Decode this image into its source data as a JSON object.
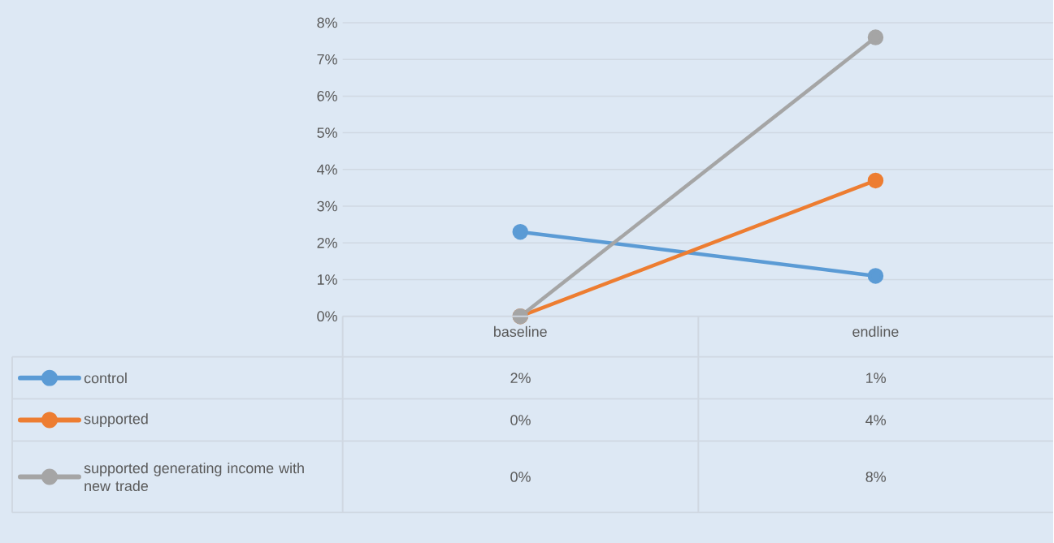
{
  "chart_data": {
    "type": "line",
    "categories": [
      "baseline",
      "endline"
    ],
    "series": [
      {
        "name": "control",
        "color": "#5b9bd5",
        "values": [
          2.3,
          1.1
        ],
        "value_labels": [
          "2%",
          "1%"
        ]
      },
      {
        "name": "supported",
        "color": "#ed7d31",
        "values": [
          0,
          3.7
        ],
        "value_labels": [
          "0%",
          "4%"
        ]
      },
      {
        "name": "supported generating income with new trade",
        "color": "#a5a5a5",
        "values": [
          0,
          7.6
        ],
        "value_labels": [
          "0%",
          "8%"
        ]
      }
    ],
    "ylim": [
      0,
      8
    ],
    "yticks": [
      {
        "value": 0,
        "label": "0%"
      },
      {
        "value": 1,
        "label": "1%"
      },
      {
        "value": 2,
        "label": "2%"
      },
      {
        "value": 3,
        "label": "3%"
      },
      {
        "value": 4,
        "label": "4%"
      },
      {
        "value": 5,
        "label": "5%"
      },
      {
        "value": 6,
        "label": "6%"
      },
      {
        "value": 7,
        "label": "7%"
      },
      {
        "value": 8,
        "label": "8%"
      }
    ],
    "grid": "y",
    "legend": "bottom",
    "marker": "circle",
    "line_style": "solid"
  }
}
